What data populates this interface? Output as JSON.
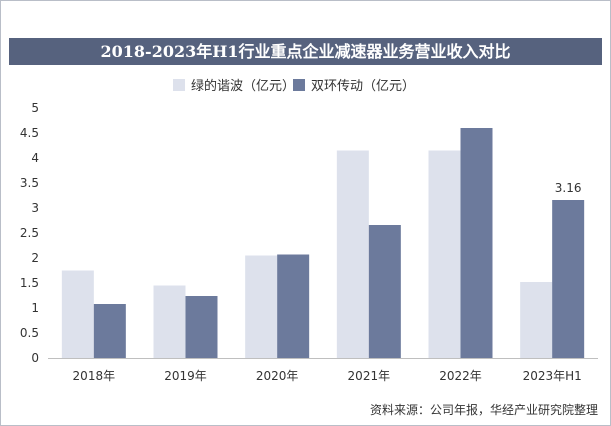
{
  "chart_data": {
    "type": "bar",
    "title": "2018-2023年H1行业重点企业减速器业务营业收入对比",
    "categories": [
      "2018年",
      "2019年",
      "2020年",
      "2021年",
      "2022年",
      "2023年H1"
    ],
    "series": [
      {
        "name": "绿的谐波（亿元）",
        "color": "#dde1ec",
        "values": [
          1.75,
          1.45,
          2.05,
          4.15,
          4.15,
          1.52
        ]
      },
      {
        "name": "双环传动（亿元）",
        "color": "#6c7a9c",
        "values": [
          1.08,
          1.24,
          2.07,
          2.66,
          4.6,
          3.16
        ]
      }
    ],
    "data_labels": [
      {
        "series": 1,
        "index": 5,
        "text": "3.16"
      }
    ],
    "ylim": [
      0,
      5
    ],
    "yticks": [
      "0",
      "0.5",
      "1",
      "1.5",
      "2",
      "2.5",
      "3",
      "3.5",
      "4",
      "4.5",
      "5"
    ],
    "xlabel": "",
    "ylabel": "",
    "grid": false,
    "legend": "top-center"
  },
  "footer": {
    "source": "资料来源：公司年报，华经产业研究院整理"
  }
}
